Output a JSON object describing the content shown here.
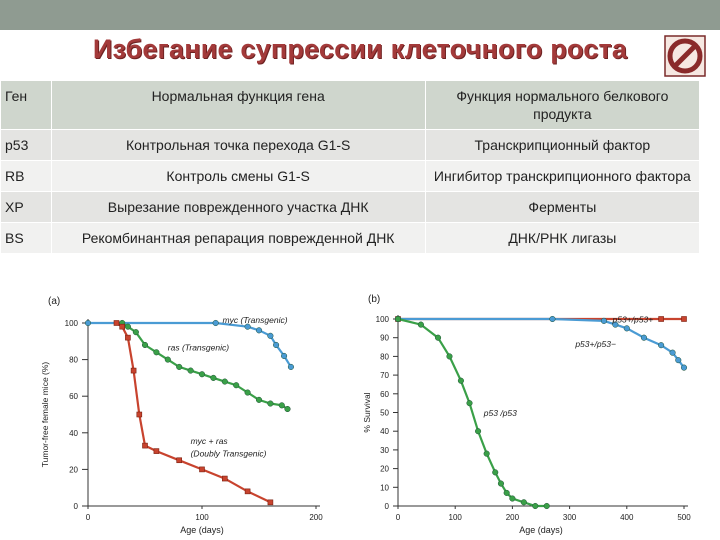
{
  "title": "Избегание супрессии клеточного роста",
  "table": {
    "headers": [
      "Ген",
      "Нормальная функция гена",
      "Функция нормального белкового продукта"
    ],
    "rows": [
      [
        "p53",
        "Контрольная точка перехода G1-S",
        "Транскрипционный фактор"
      ],
      [
        "RB",
        "Контроль смены G1-S",
        "Ингибитор транскрипционного фактора"
      ],
      [
        "XP",
        "Вырезание поврежденного участка ДНК",
        "Ферменты"
      ],
      [
        "BS",
        "Рекомбинантная репарация поврежденной ДНК",
        "ДНК/РНК лигазы"
      ]
    ]
  },
  "colors": {
    "blue": "#4a9bd4",
    "green": "#3aa048",
    "red": "#c8432e",
    "title": "#a33a3a"
  },
  "chart_data": [
    {
      "type": "line",
      "panel_label": "(a)",
      "xlabel": "Age (days)",
      "ylabel": "Tumor-free female mice (%)",
      "xlim": [
        0,
        200
      ],
      "ylim": [
        0,
        100
      ],
      "xticks": [
        0,
        100,
        200
      ],
      "yticks": [
        0,
        20,
        40,
        60,
        80,
        100
      ],
      "series": [
        {
          "name": "myc (Transgenic)",
          "color": "blue",
          "x": [
            0,
            112,
            140,
            150,
            160,
            165,
            172,
            178
          ],
          "y": [
            100,
            100,
            98,
            96,
            93,
            88,
            82,
            76
          ]
        },
        {
          "name": "ras (Transgenic)",
          "color": "green",
          "x": [
            30,
            35,
            42,
            50,
            60,
            70,
            80,
            90,
            100,
            110,
            120,
            130,
            140,
            150,
            160,
            170,
            175
          ],
          "y": [
            100,
            98,
            95,
            88,
            84,
            80,
            76,
            74,
            72,
            70,
            68,
            66,
            62,
            58,
            56,
            55,
            53
          ]
        },
        {
          "name": "myc + ras (Doubly Transgenic)",
          "color": "red",
          "x": [
            25,
            30,
            35,
            40,
            45,
            50,
            60,
            80,
            100,
            120,
            140,
            160
          ],
          "y": [
            100,
            98,
            92,
            74,
            50,
            33,
            30,
            25,
            20,
            15,
            8,
            2
          ]
        }
      ],
      "annotations": [
        {
          "text": "myc (Transgenic)",
          "x": 118,
          "y": 100
        },
        {
          "text": "ras (Transgenic)",
          "x": 70,
          "y": 85
        },
        {
          "text": "myc + ras",
          "x": 90,
          "y": 34
        },
        {
          "text": "(Doubly Transgenic)",
          "x": 90,
          "y": 27
        }
      ]
    },
    {
      "type": "line",
      "panel_label": "(b)",
      "xlabel": "Age (days)",
      "ylabel": "% Survival",
      "xlim": [
        0,
        500
      ],
      "ylim": [
        0,
        100
      ],
      "xticks": [
        0,
        100,
        200,
        300,
        400,
        500
      ],
      "yticks": [
        0,
        10,
        20,
        30,
        40,
        50,
        60,
        70,
        80,
        90,
        100
      ],
      "series": [
        {
          "name": "p53+/p53+",
          "color": "red",
          "x": [
            0,
            460,
            500
          ],
          "y": [
            100,
            100,
            100
          ]
        },
        {
          "name": "p53+/p53−",
          "color": "blue",
          "x": [
            0,
            270,
            360,
            380,
            400,
            430,
            460,
            480,
            490,
            500
          ],
          "y": [
            100,
            100,
            99,
            97,
            95,
            90,
            86,
            82,
            78,
            74
          ]
        },
        {
          "name": "p53−/p53",
          "color": "green",
          "x": [
            0,
            40,
            70,
            90,
            110,
            125,
            140,
            155,
            170,
            180,
            190,
            200,
            220,
            240,
            260
          ],
          "y": [
            100,
            97,
            90,
            80,
            67,
            55,
            40,
            28,
            18,
            12,
            7,
            4,
            2,
            0,
            0
          ]
        }
      ],
      "annotations": [
        {
          "text": "p53+/p53+",
          "x": 375,
          "y": 98
        },
        {
          "text": "p53+/p53−",
          "x": 310,
          "y": 85
        },
        {
          "text": "p53  /p53",
          "x": 150,
          "y": 48
        }
      ]
    }
  ]
}
